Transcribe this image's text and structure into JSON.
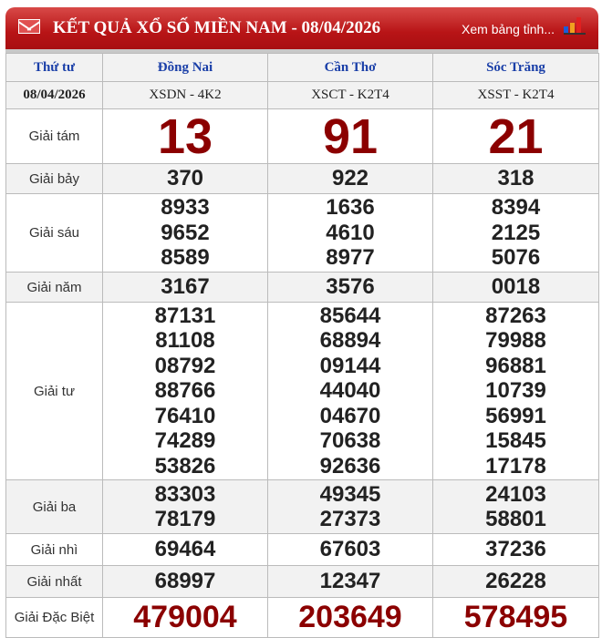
{
  "header": {
    "title": "KẾT QUẢ XỔ SỐ MIỀN NAM - 08/04/2026",
    "more_link": "Xem bảng tỉnh...",
    "icons": [
      "mail-icon",
      "bar-chart-icon"
    ],
    "accent": "#b81416"
  },
  "table": {
    "day": "Thứ tư",
    "date": "08/04/2026",
    "provinces": [
      {
        "name": "Đồng Nai",
        "code": "XSDN - 4K2"
      },
      {
        "name": "Cần Thơ",
        "code": "XSCT - K2T4"
      },
      {
        "name": "Sóc Trăng",
        "code": "XSST - K2T4"
      }
    ],
    "prizes": [
      {
        "label": "Giải tám",
        "style": "big",
        "values": [
          [
            "13"
          ],
          [
            "91"
          ],
          [
            "21"
          ]
        ]
      },
      {
        "label": "Giải bảy",
        "style": "num",
        "values": [
          [
            "370"
          ],
          [
            "922"
          ],
          [
            "318"
          ]
        ]
      },
      {
        "label": "Giải sáu",
        "style": "num",
        "values": [
          [
            "8933",
            "9652",
            "8589"
          ],
          [
            "1636",
            "4610",
            "8977"
          ],
          [
            "8394",
            "2125",
            "5076"
          ]
        ]
      },
      {
        "label": "Giải năm",
        "style": "num",
        "values": [
          [
            "3167"
          ],
          [
            "3576"
          ],
          [
            "0018"
          ]
        ]
      },
      {
        "label": "Giải tư",
        "style": "num",
        "values": [
          [
            "87131",
            "81108",
            "08792",
            "88766",
            "76410",
            "74289",
            "53826"
          ],
          [
            "85644",
            "68894",
            "09144",
            "44040",
            "04670",
            "70638",
            "92636"
          ],
          [
            "87263",
            "79988",
            "96881",
            "10739",
            "56991",
            "15845",
            "17178"
          ]
        ]
      },
      {
        "label": "Giải ba",
        "style": "num",
        "values": [
          [
            "83303",
            "78179"
          ],
          [
            "49345",
            "27373"
          ],
          [
            "24103",
            "58801"
          ]
        ]
      },
      {
        "label": "Giải nhì",
        "style": "num",
        "values": [
          [
            "69464"
          ],
          [
            "67603"
          ],
          [
            "37236"
          ]
        ]
      },
      {
        "label": "Giải nhất",
        "style": "num",
        "values": [
          [
            "68997"
          ],
          [
            "12347"
          ],
          [
            "26228"
          ]
        ]
      },
      {
        "label": "Giải Đặc Biệt",
        "style": "sp",
        "values": [
          [
            "479004"
          ],
          [
            "203649"
          ],
          [
            "578495"
          ]
        ]
      }
    ]
  }
}
